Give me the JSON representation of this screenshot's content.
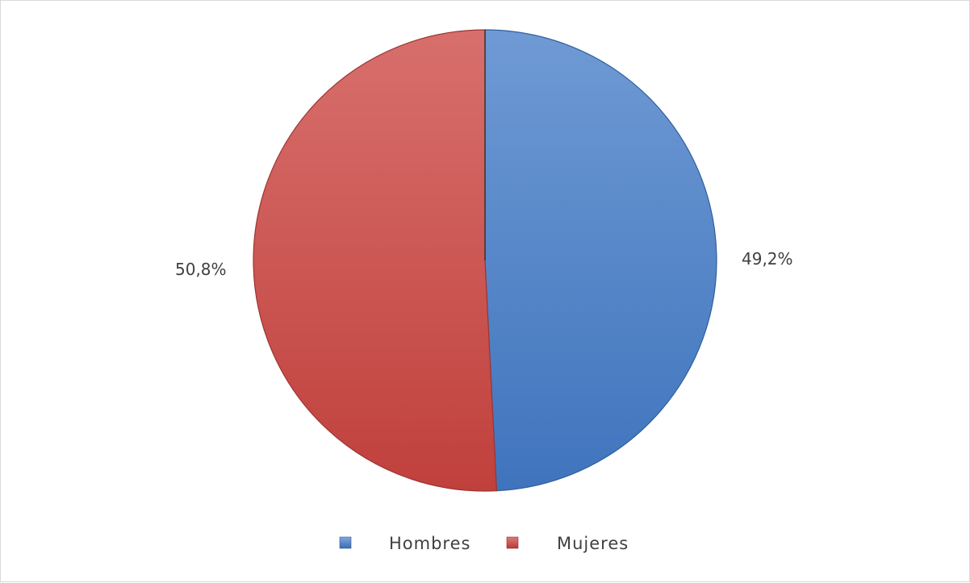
{
  "chart_data": {
    "type": "pie",
    "categories": [
      "Hombres",
      "Mujeres"
    ],
    "values": [
      49.2,
      50.8
    ],
    "data_labels": [
      "49,2%",
      "50,8%"
    ],
    "colors": [
      "#4f81bd",
      "#c0504d"
    ],
    "title": "",
    "legend_position": "bottom"
  },
  "legend": {
    "items": [
      {
        "label": "Hombres",
        "color": "#4f81bd"
      },
      {
        "label": "Mujeres",
        "color": "#c0504d"
      }
    ]
  }
}
